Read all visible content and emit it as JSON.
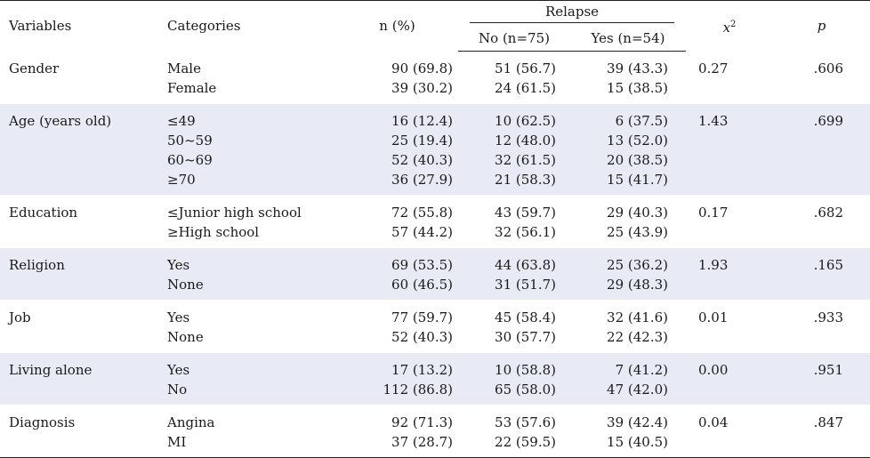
{
  "header": {
    "variables": "Variables",
    "categories": "Categories",
    "n_pct": "n (%)",
    "relapse": "Relapse",
    "no": "No (n=75)",
    "yes": "Yes (n=54)",
    "x2_base": "x",
    "x2_sup": "2",
    "p": "p"
  },
  "rows": [
    {
      "variable": "Gender",
      "categories": [
        "Male",
        "Female"
      ],
      "n": [
        "90 (69.8)",
        "39 (30.2)"
      ],
      "no": [
        "51 (56.7)",
        "24 (61.5)"
      ],
      "yes": [
        "39 (43.3)",
        "15 (38.5)"
      ],
      "x2": "0.27",
      "p": ".606"
    },
    {
      "variable": "Age (years old)",
      "categories": [
        "≤49",
        "50~59",
        "60~69",
        "≥70"
      ],
      "n": [
        "16 (12.4)",
        "25 (19.4)",
        "52 (40.3)",
        "36 (27.9)"
      ],
      "no": [
        "10 (62.5)",
        "12 (48.0)",
        "32 (61.5)",
        "21 (58.3)"
      ],
      "yes": [
        "6 (37.5)",
        "13 (52.0)",
        "20 (38.5)",
        "15 (41.7)"
      ],
      "x2": "1.43",
      "p": ".699"
    },
    {
      "variable": "Education",
      "categories": [
        "≤Junior high school",
        "≥High school"
      ],
      "n": [
        "72 (55.8)",
        "57 (44.2)"
      ],
      "no": [
        "43 (59.7)",
        "32 (56.1)"
      ],
      "yes": [
        "29 (40.3)",
        "25 (43.9)"
      ],
      "x2": "0.17",
      "p": ".682"
    },
    {
      "variable": "Religion",
      "categories": [
        "Yes",
        "None"
      ],
      "n": [
        "69 (53.5)",
        "60 (46.5)"
      ],
      "no": [
        "44 (63.8)",
        "31 (51.7)"
      ],
      "yes": [
        "25 (36.2)",
        "29 (48.3)"
      ],
      "x2": "1.93",
      "p": ".165"
    },
    {
      "variable": "Job",
      "categories": [
        "Yes",
        "None"
      ],
      "n": [
        "77 (59.7)",
        "52 (40.3)"
      ],
      "no": [
        "45 (58.4)",
        "30 (57.7)"
      ],
      "yes": [
        "32 (41.6)",
        "22 (42.3)"
      ],
      "x2": "0.01",
      "p": ".933"
    },
    {
      "variable": "Living alone",
      "categories": [
        "Yes",
        "No"
      ],
      "n": [
        "17 (13.2)",
        "112 (86.8)"
      ],
      "no": [
        "10 (58.8)",
        "65 (58.0)"
      ],
      "yes": [
        "7 (41.2)",
        "47 (42.0)"
      ],
      "x2": "0.00",
      "p": ".951"
    },
    {
      "variable": "Diagnosis",
      "categories": [
        "Angina",
        "MI"
      ],
      "n": [
        "92 (71.3)",
        "37 (28.7)"
      ],
      "no": [
        "53 (57.6)",
        "22 (59.5)"
      ],
      "yes": [
        "39 (42.4)",
        "15 (40.5)"
      ],
      "x2": "0.04",
      "p": ".847"
    }
  ]
}
